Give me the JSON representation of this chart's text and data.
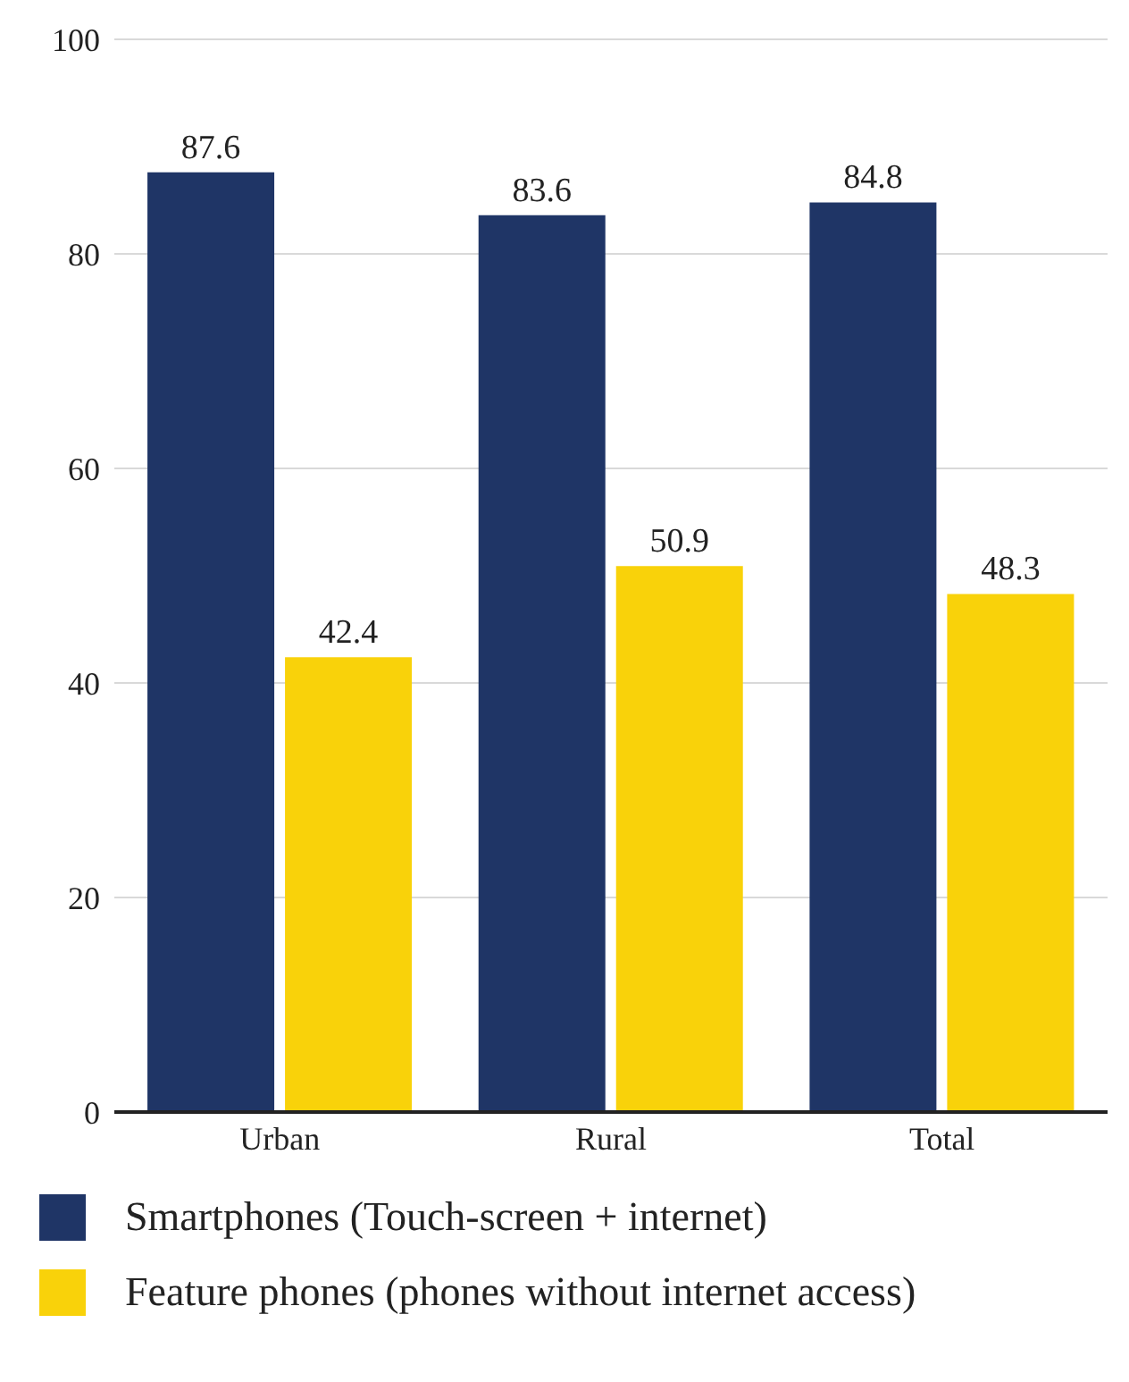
{
  "chart_data": {
    "type": "bar",
    "categories": [
      "Urban",
      "Rural",
      "Total"
    ],
    "series": [
      {
        "name": "Smartphones (Touch-screen + internet)",
        "color": "#1f3566",
        "values": [
          87.6,
          83.6,
          84.8
        ]
      },
      {
        "name": "Feature phones (phones without internet access)",
        "color": "#f9d20a",
        "values": [
          42.4,
          50.9,
          48.3
        ]
      }
    ],
    "ylim": [
      0,
      100
    ],
    "yticks": [
      0,
      20,
      40,
      60,
      80,
      100
    ],
    "grid": "y",
    "legend": "bottom",
    "data_labels": true
  }
}
